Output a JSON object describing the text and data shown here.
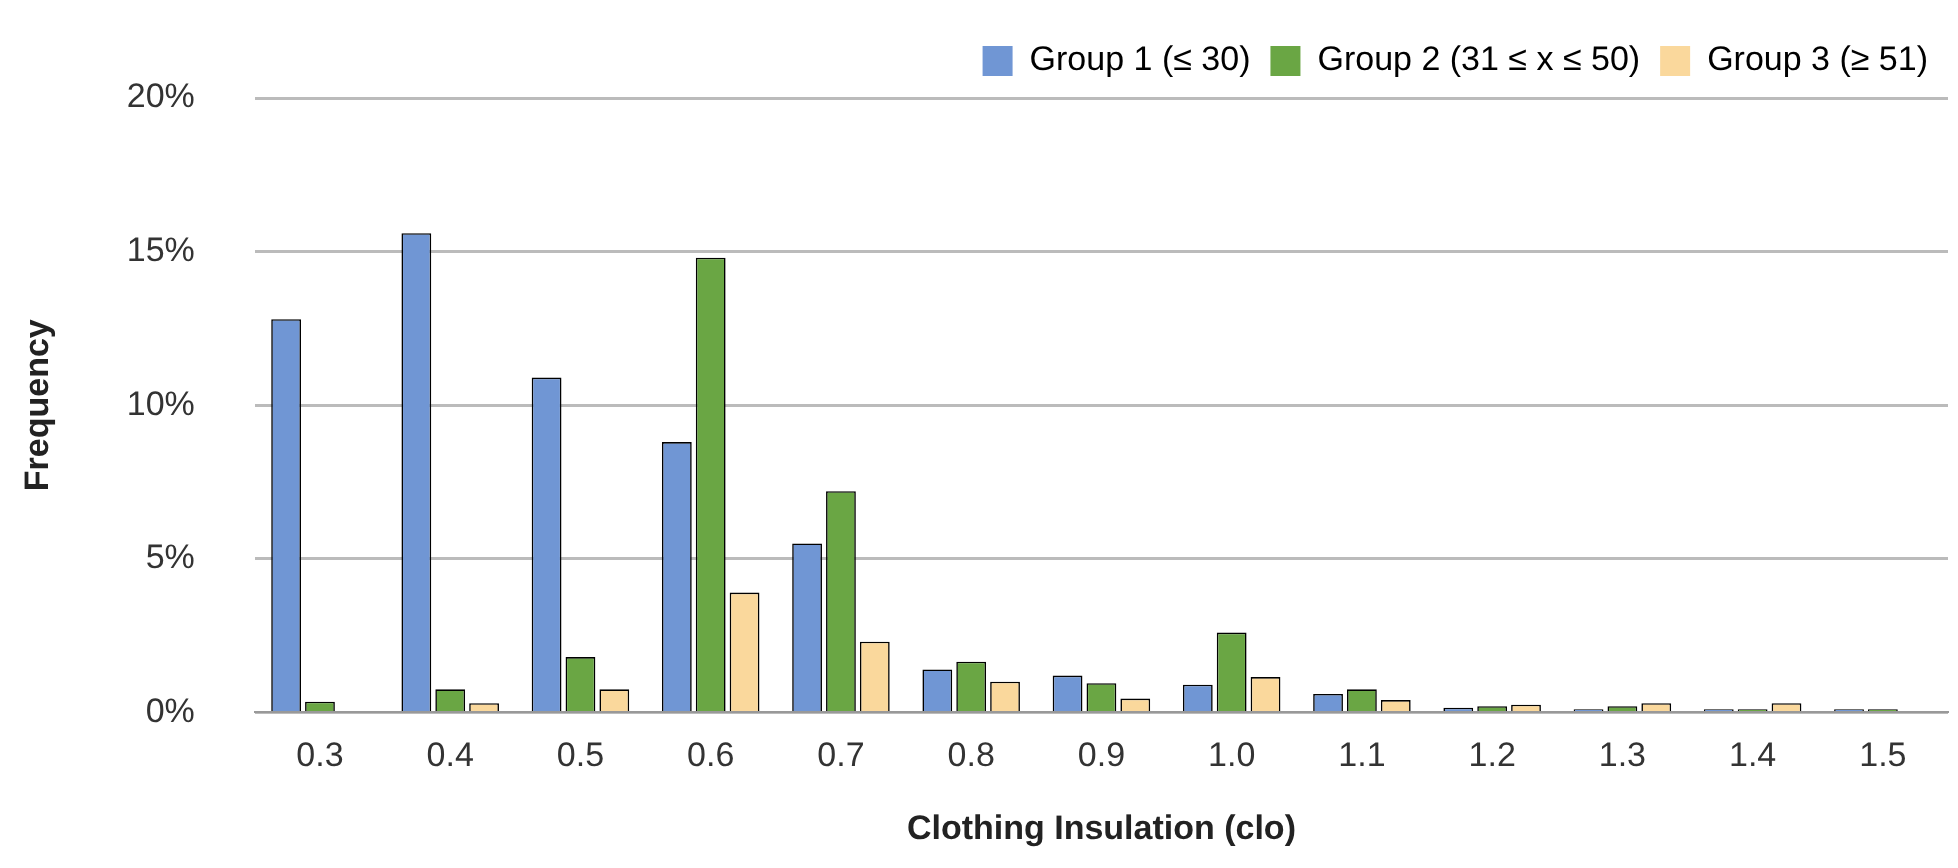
{
  "chart_data": {
    "type": "bar",
    "xlabel": "Clothing Insulation (clo)",
    "ylabel": "Frequency",
    "categories": [
      "0.3",
      "0.4",
      "0.5",
      "0.6",
      "0.7",
      "0.8",
      "0.9",
      "1.0",
      "1.1",
      "1.2",
      "1.3",
      "1.4",
      "1.5"
    ],
    "series": [
      {
        "name": "Group 1 (≤ 30)",
        "color": "#7096d4",
        "values": [
          12.8,
          15.6,
          10.9,
          8.8,
          5.5,
          1.4,
          1.2,
          0.9,
          0.6,
          0.15,
          0.1,
          0.1,
          0.1
        ]
      },
      {
        "name": "Group 2 (31 ≤ x ≤ 50)",
        "color": "#6aa644",
        "values": [
          0.35,
          0.75,
          1.8,
          14.8,
          7.2,
          1.65,
          0.95,
          2.6,
          0.75,
          0.2,
          0.2,
          0.1,
          0.1
        ]
      },
      {
        "name": "Group 3 (≥ 51)",
        "color": "#fad89c",
        "values": [
          null,
          0.3,
          0.75,
          3.9,
          2.3,
          1.0,
          0.45,
          1.15,
          0.4,
          0.25,
          0.3,
          0.3,
          null
        ]
      }
    ],
    "ylim": [
      0,
      20
    ],
    "yticks": [
      {
        "value": 0,
        "label": "0%"
      },
      {
        "value": 5,
        "label": "5%"
      },
      {
        "value": 10,
        "label": "10%"
      },
      {
        "value": 15,
        "label": "15%"
      },
      {
        "value": 20,
        "label": "20%"
      }
    ],
    "grid": "y",
    "legend": "top right"
  }
}
